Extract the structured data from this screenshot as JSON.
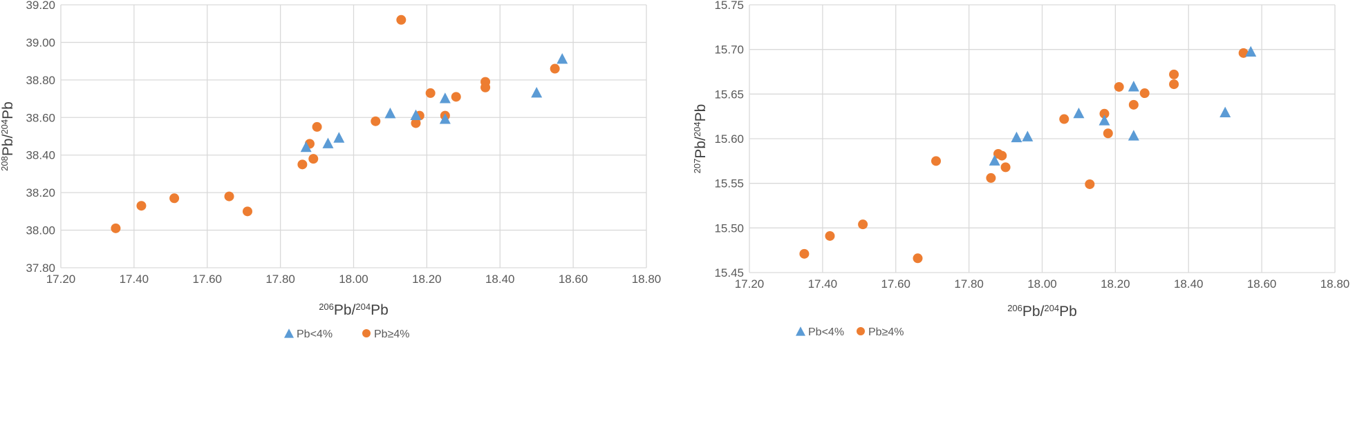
{
  "chart_data": [
    {
      "type": "scatter",
      "xlabel": {
        "sup1": "206",
        "base1": "Pb/",
        "sup2": "204",
        "base2": "Pb"
      },
      "ylabel": {
        "sup1": "208",
        "base1": "Pb/",
        "sup2": "204",
        "base2": "Pb"
      },
      "xlim": [
        17.2,
        18.8
      ],
      "ylim": [
        37.8,
        39.2
      ],
      "xticks": [
        "17.20",
        "17.40",
        "17.60",
        "17.80",
        "18.00",
        "18.20",
        "18.40",
        "18.60",
        "18.80"
      ],
      "yticks": [
        "37.80",
        "38.00",
        "38.20",
        "38.40",
        "38.60",
        "38.80",
        "39.00",
        "39.20"
      ],
      "grid": true,
      "legend_position": "bottom",
      "series": [
        {
          "name": "Pb<4%",
          "marker": "triangle",
          "color": "#5b9bd5",
          "points": [
            [
              17.87,
              38.44
            ],
            [
              17.93,
              38.46
            ],
            [
              17.96,
              38.49
            ],
            [
              18.1,
              38.62
            ],
            [
              18.17,
              38.61
            ],
            [
              18.25,
              38.59
            ],
            [
              18.25,
              38.7
            ],
            [
              18.5,
              38.73
            ],
            [
              18.57,
              38.91
            ]
          ]
        },
        {
          "name": "Pb≥4%",
          "marker": "circle",
          "color": "#ed7d31",
          "points": [
            [
              17.35,
              38.01
            ],
            [
              17.42,
              38.13
            ],
            [
              17.51,
              38.17
            ],
            [
              17.66,
              38.18
            ],
            [
              17.71,
              38.1
            ],
            [
              17.86,
              38.35
            ],
            [
              17.88,
              38.46
            ],
            [
              17.89,
              38.38
            ],
            [
              17.9,
              38.55
            ],
            [
              18.06,
              38.58
            ],
            [
              18.13,
              39.12
            ],
            [
              18.17,
              38.57
            ],
            [
              18.18,
              38.61
            ],
            [
              18.21,
              38.73
            ],
            [
              18.25,
              38.61
            ],
            [
              18.28,
              38.71
            ],
            [
              18.36,
              38.76
            ],
            [
              18.36,
              38.79
            ],
            [
              18.55,
              38.86
            ]
          ]
        }
      ]
    },
    {
      "type": "scatter",
      "xlabel": {
        "sup1": "206",
        "base1": "Pb/",
        "sup2": "204",
        "base2": "Pb"
      },
      "ylabel": {
        "sup1": "207",
        "base1": "Pb/",
        "sup2": "204",
        "base2": "Pb"
      },
      "xlim": [
        17.2,
        18.8
      ],
      "ylim": [
        15.45,
        15.75
      ],
      "xticks": [
        "17.20",
        "17.40",
        "17.60",
        "17.80",
        "18.00",
        "18.20",
        "18.40",
        "18.60",
        "18.80"
      ],
      "yticks": [
        "15.45",
        "15.50",
        "15.55",
        "15.60",
        "15.65",
        "15.70",
        "15.75"
      ],
      "grid": true,
      "legend_position": "bottom",
      "series": [
        {
          "name": "Pb<4%",
          "marker": "triangle",
          "color": "#5b9bd5",
          "points": [
            [
              17.87,
              15.575
            ],
            [
              17.93,
              15.601
            ],
            [
              17.96,
              15.602
            ],
            [
              18.1,
              15.628
            ],
            [
              18.17,
              15.62
            ],
            [
              18.25,
              15.658
            ],
            [
              18.25,
              15.603
            ],
            [
              18.5,
              15.629
            ],
            [
              18.57,
              15.697
            ]
          ]
        },
        {
          "name": "Pb≥4%",
          "marker": "circle",
          "color": "#ed7d31",
          "points": [
            [
              17.35,
              15.471
            ],
            [
              17.42,
              15.491
            ],
            [
              17.51,
              15.504
            ],
            [
              17.66,
              15.466
            ],
            [
              17.71,
              15.575
            ],
            [
              17.86,
              15.556
            ],
            [
              17.88,
              15.583
            ],
            [
              17.89,
              15.581
            ],
            [
              17.9,
              15.568
            ],
            [
              18.06,
              15.622
            ],
            [
              18.13,
              15.549
            ],
            [
              18.17,
              15.628
            ],
            [
              18.18,
              15.606
            ],
            [
              18.21,
              15.658
            ],
            [
              18.25,
              15.638
            ],
            [
              18.28,
              15.651
            ],
            [
              18.36,
              15.661
            ],
            [
              18.36,
              15.672
            ],
            [
              18.55,
              15.696
            ]
          ]
        }
      ]
    }
  ]
}
